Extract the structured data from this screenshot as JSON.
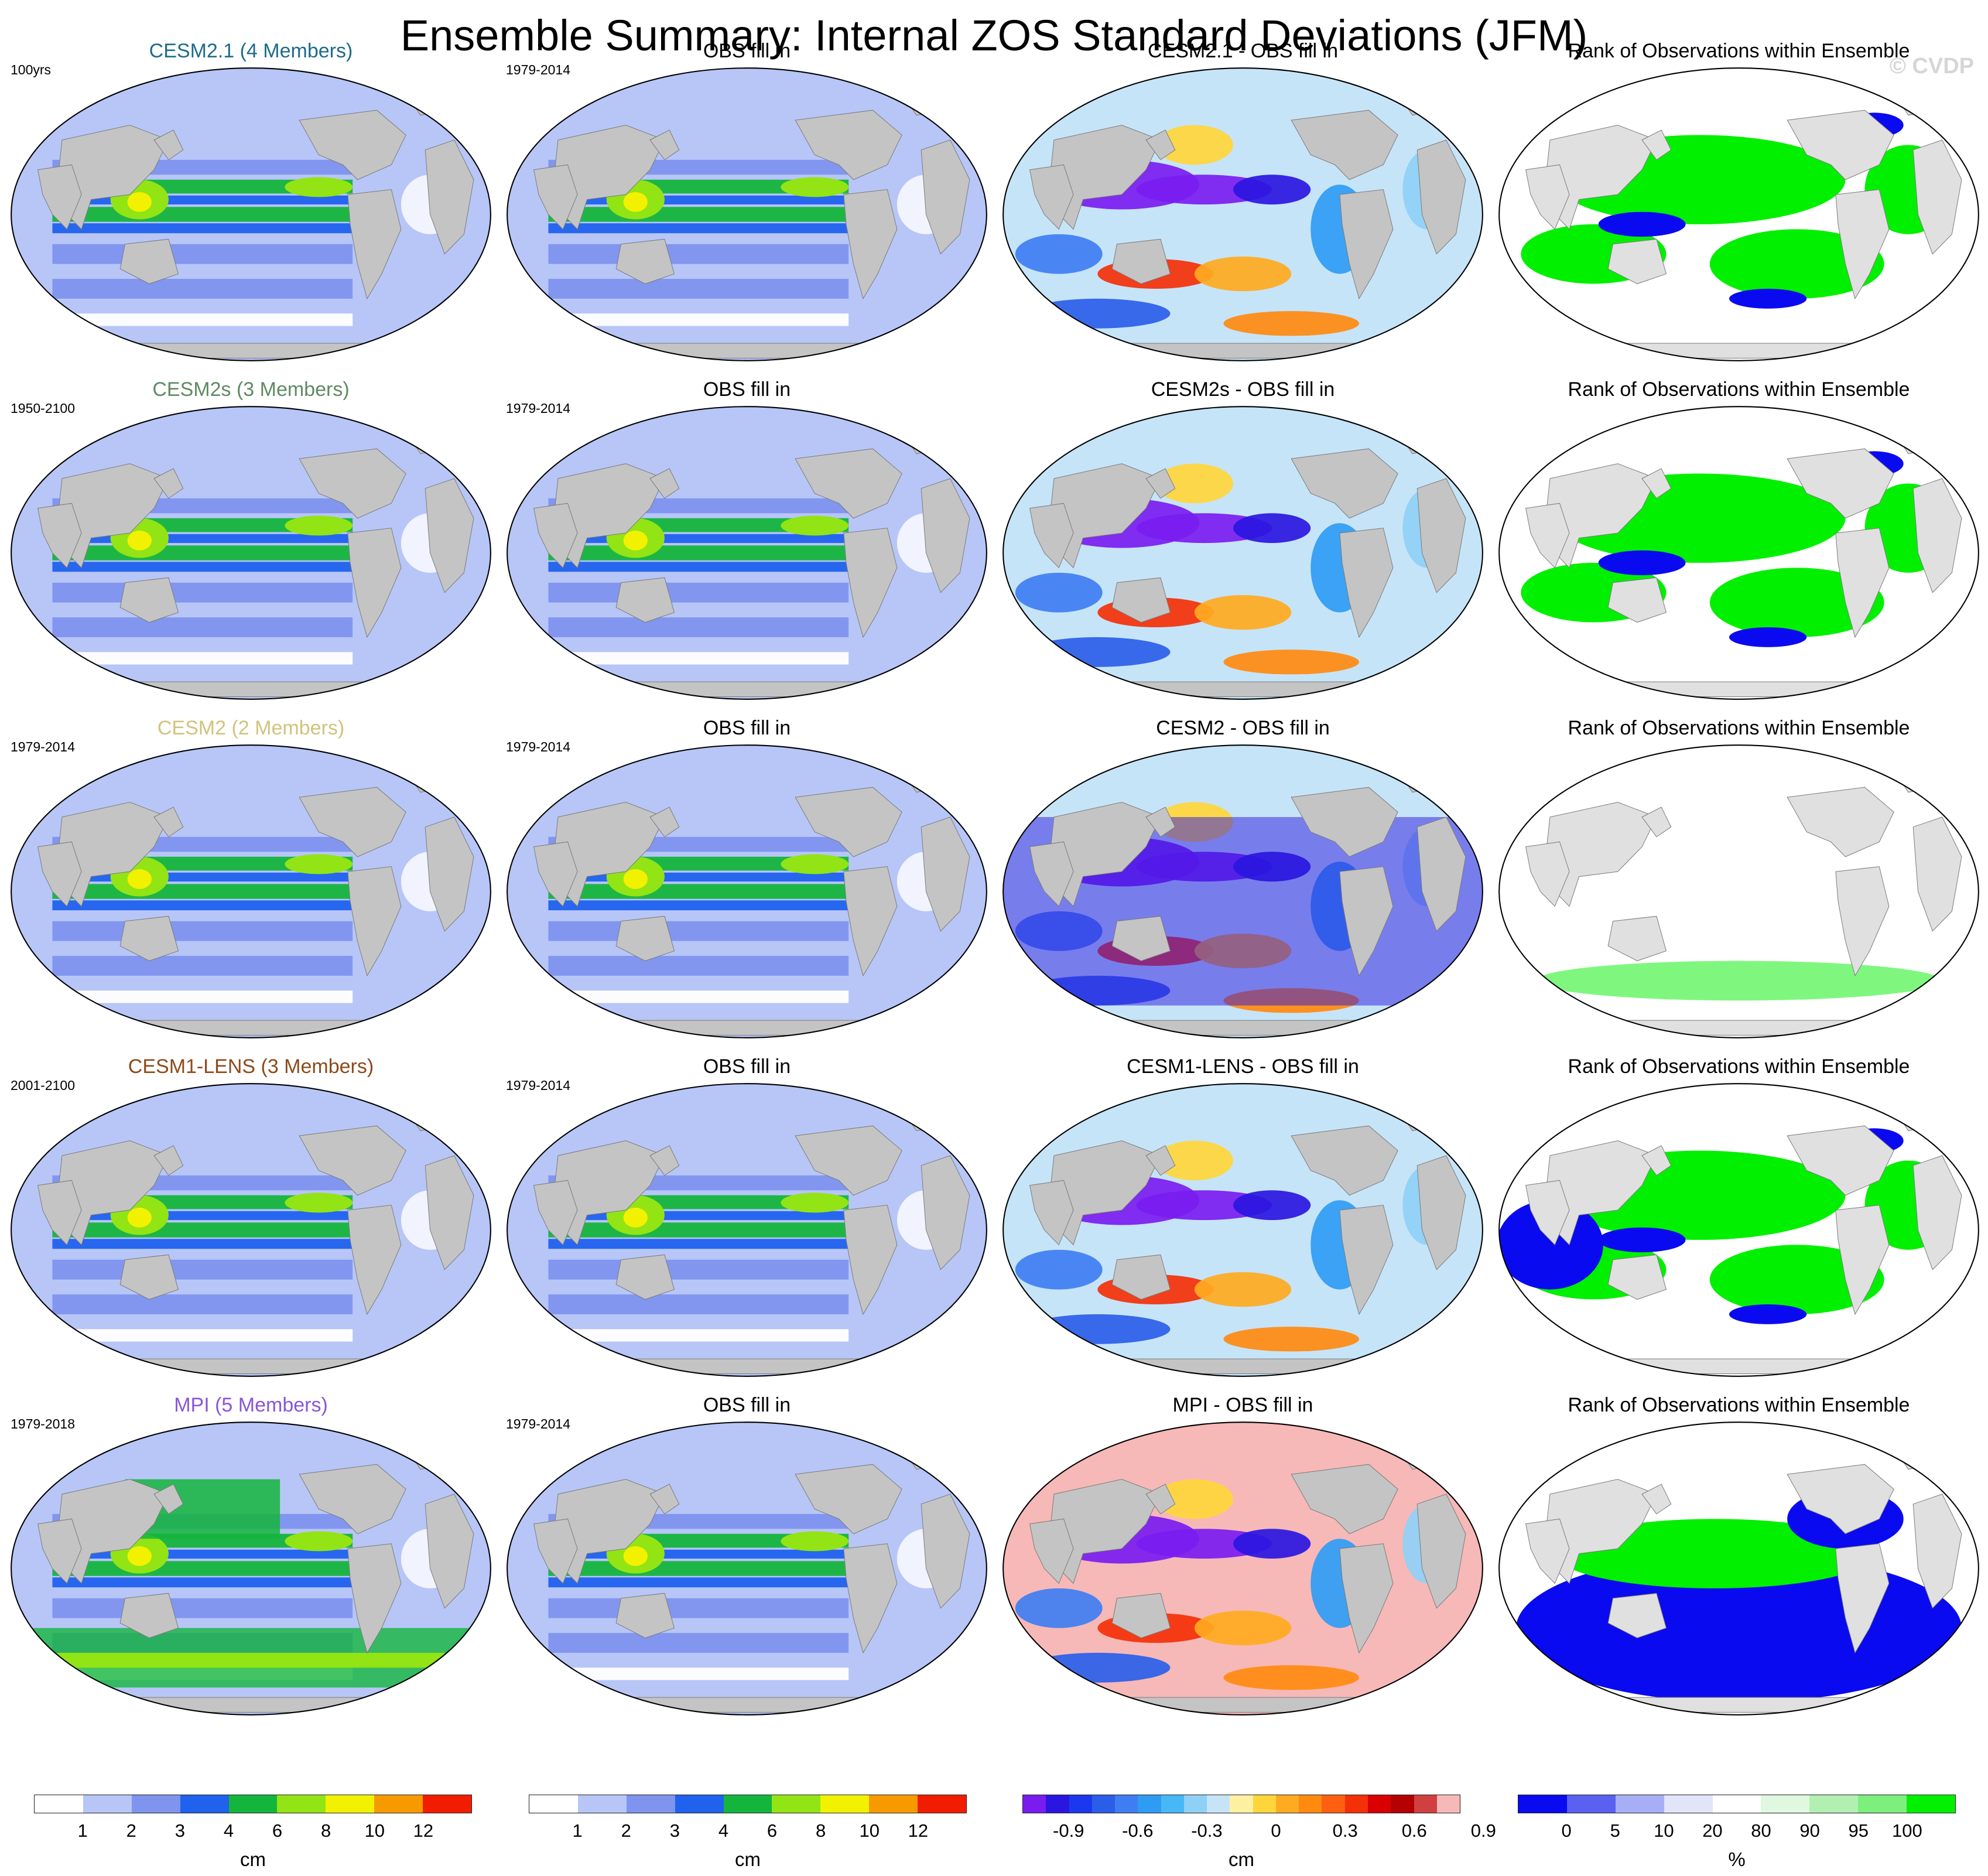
{
  "title": "Ensemble Summary: Internal ZOS Standard Deviations (JFM)",
  "watermark": "© CVDP",
  "colors": {
    "land": "#c4c4c4",
    "land_dark": "#a9a9a9",
    "rank_land": "#e0e0e0",
    "ocean_base": "#b7c6f7"
  },
  "rows": [
    {
      "model_title": "CESM2.1 (4 Members)",
      "model_color": "#1e6b8a",
      "period": "100yrs",
      "obs_period": "1979-2014",
      "obs_title": "OBS fill in",
      "diff_title": "CESM2.1 - OBS fill in",
      "rank_title": "Rank of Observations within Ensemble"
    },
    {
      "model_title": "CESM2s (3 Members)",
      "model_color": "#5f8a63",
      "period": "1950-2100",
      "obs_period": "1979-2014",
      "obs_title": "OBS fill in",
      "diff_title": "CESM2s - OBS fill in",
      "rank_title": "Rank of Observations within Ensemble"
    },
    {
      "model_title": "CESM2 (2 Members)",
      "model_color": "#d2c27c",
      "period": "1979-2014",
      "obs_period": "1979-2014",
      "obs_title": "OBS fill in",
      "diff_title": "CESM2 - OBS fill in",
      "rank_title": "Rank of Observations within Ensemble"
    },
    {
      "model_title": "CESM1-LENS (3 Members)",
      "model_color": "#8c4a1a",
      "period": "2001-2100",
      "obs_period": "1979-2014",
      "obs_title": "OBS fill in",
      "diff_title": "CESM1-LENS - OBS fill in",
      "rank_title": "Rank of Observations within Ensemble"
    },
    {
      "model_title": "MPI (5 Members)",
      "model_color": "#8a55d6",
      "period": "1979-2018",
      "obs_period": "1979-2014",
      "obs_title": "OBS fill in",
      "diff_title": "MPI - OBS fill in",
      "rank_title": "Rank of Observations within Ensemble"
    }
  ],
  "colorbars": [
    {
      "unit": "cm",
      "colors": [
        "#ffffff",
        "#b7c6f7",
        "#7e94ef",
        "#1f62ee",
        "#14b53c",
        "#92e414",
        "#f2f200",
        "#f79a00",
        "#f21d00"
      ],
      "labels": [
        "1",
        "2",
        "3",
        "4",
        "6",
        "8",
        "10",
        "12"
      ]
    },
    {
      "unit": "cm",
      "colors": [
        "#ffffff",
        "#b7c6f7",
        "#7e94ef",
        "#1f62ee",
        "#14b53c",
        "#92e414",
        "#f2f200",
        "#f79a00",
        "#f21d00"
      ],
      "labels": [
        "1",
        "2",
        "3",
        "4",
        "6",
        "8",
        "10",
        "12"
      ]
    },
    {
      "unit": "cm",
      "colors": [
        "#7a1cf0",
        "#2a16e0",
        "#1b38ee",
        "#2a5ee8",
        "#3f7ef2",
        "#2f9cf4",
        "#47b8f6",
        "#8fd0f7",
        "#c6e4f8",
        "#fff0a2",
        "#ffd63a",
        "#ffaa20",
        "#ff8a10",
        "#ff6010",
        "#f43008",
        "#d80000",
        "#b40000",
        "#d04040",
        "#f7b8b8"
      ],
      "labels": [
        "-0.9",
        "-0.6",
        "-0.3",
        "0",
        "0.3",
        "0.6",
        "0.9"
      ]
    },
    {
      "unit": "%",
      "colors": [
        "#0a0af0",
        "#5a60f0",
        "#a8aef5",
        "#e2e4fa",
        "#ffffff",
        "#dff8df",
        "#b2f0b2",
        "#7cef7c",
        "#00f000"
      ],
      "labels": [
        "0",
        "5",
        "10",
        "20",
        "80",
        "90",
        "95",
        "100"
      ]
    }
  ]
}
